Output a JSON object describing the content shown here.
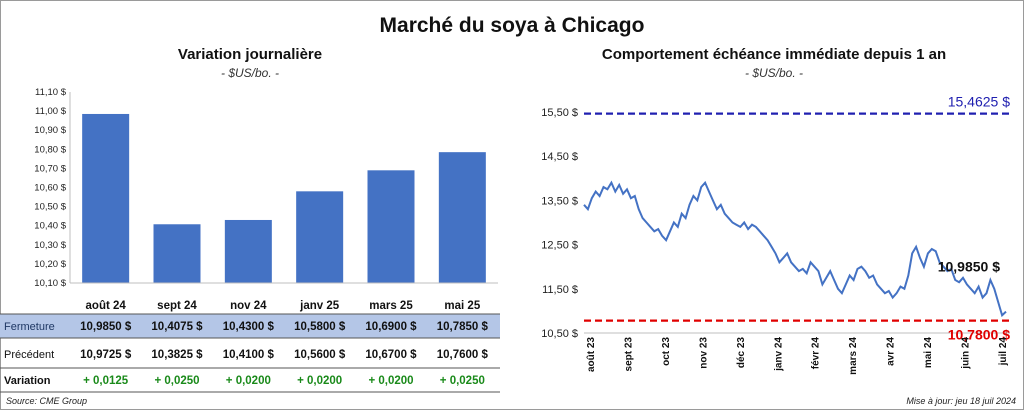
{
  "title": "Marché du soya à Chicago",
  "left": {
    "subtitle": "Variation journalière",
    "unit": "- $US/bo. -",
    "row_labels": {
      "close": "Fermeture",
      "prev": "Précédent",
      "change": "Variation"
    }
  },
  "right": {
    "subtitle": "Comportement  échéance immédiate depuis 1 an",
    "unit": "- $US/bo. -"
  },
  "source": "Source: CME Group",
  "updated": "Mise à jour: jeu 18 juil 2024",
  "colors": {
    "bar": "#4472c4",
    "line": "#4472c4",
    "high": "#2020b0",
    "low": "#e00000",
    "positive": "#1a8a1a",
    "table_highlight": "#b4c6e7"
  },
  "chart_data": [
    {
      "type": "bar",
      "categories": [
        "août 24",
        "sept 24",
        "nov 24",
        "janv 25",
        "mars 25",
        "mai 25"
      ],
      "values": [
        10.985,
        10.4075,
        10.43,
        10.58,
        10.69,
        10.785
      ],
      "ylim": [
        10.1,
        11.1
      ],
      "yticks": [
        "10,10 $",
        "10,20 $",
        "10,30 $",
        "10,40 $",
        "10,50 $",
        "10,60 $",
        "10,70 $",
        "10,80 $",
        "10,90 $",
        "11,00 $",
        "11,10 $"
      ],
      "close_labels": [
        "10,9850  $",
        "10,4075  $",
        "10,4300  $",
        "10,5800  $",
        "10,6900  $",
        "10,7850  $"
      ],
      "prev_labels": [
        "10,9725  $",
        "10,3825  $",
        "10,4100  $",
        "10,5600  $",
        "10,6700  $",
        "10,7600  $"
      ],
      "change_labels": [
        "+ 0,0125",
        "+ 0,0250",
        "+ 0,0200",
        "+ 0,0200",
        "+ 0,0200",
        "+ 0,0250"
      ]
    },
    {
      "type": "line",
      "ylim": [
        10.5,
        15.5
      ],
      "yticks": [
        "10,50 $",
        "11,50 $",
        "12,50 $",
        "13,50 $",
        "14,50 $",
        "15,50 $"
      ],
      "x_labels": [
        "août 23",
        "sept 23",
        "oct 23",
        "nov 23",
        "déc 23",
        "janv 24",
        "févr 24",
        "mars 24",
        "avr 24",
        "mai 24",
        "juin 24",
        "juil 24"
      ],
      "series": [
        {
          "values": [
            13.4,
            13.3,
            13.55,
            13.7,
            13.6,
            13.8,
            13.75,
            13.9,
            13.7,
            13.85,
            13.65,
            13.75,
            13.55,
            13.6,
            13.3,
            13.1,
            13.0,
            12.9,
            12.8,
            12.85,
            12.7,
            12.6,
            12.8,
            13.0,
            12.9,
            13.2,
            13.1,
            13.4,
            13.6,
            13.5,
            13.8,
            13.9,
            13.7,
            13.5,
            13.3,
            13.4,
            13.2,
            13.1,
            13.0,
            12.95,
            12.9,
            13.0,
            12.85,
            12.95,
            12.9,
            12.8,
            12.7,
            12.6,
            12.45,
            12.3,
            12.1,
            12.2,
            12.3,
            12.1,
            12.0,
            11.9,
            11.95,
            11.85,
            12.1,
            12.0,
            11.9,
            11.6,
            11.75,
            11.9,
            11.7,
            11.5,
            11.4,
            11.6,
            11.8,
            11.7,
            11.95,
            12.0,
            11.9,
            11.75,
            11.8,
            11.6,
            11.5,
            11.4,
            11.45,
            11.3,
            11.4,
            11.55,
            11.5,
            11.8,
            12.3,
            12.45,
            12.2,
            12.0,
            12.3,
            12.4,
            12.35,
            12.1,
            12.0,
            11.9,
            11.95,
            11.7,
            11.65,
            11.75,
            11.6,
            11.5,
            11.4,
            11.55,
            11.3,
            11.4,
            11.7,
            11.5,
            11.2,
            10.9,
            10.985
          ]
        }
      ],
      "reference_lines": [
        {
          "label": "15,4625 $",
          "value": 15.4625
        },
        {
          "label": "10,7800 $",
          "value": 10.78
        }
      ],
      "last_label": "10,9850 $"
    }
  ]
}
